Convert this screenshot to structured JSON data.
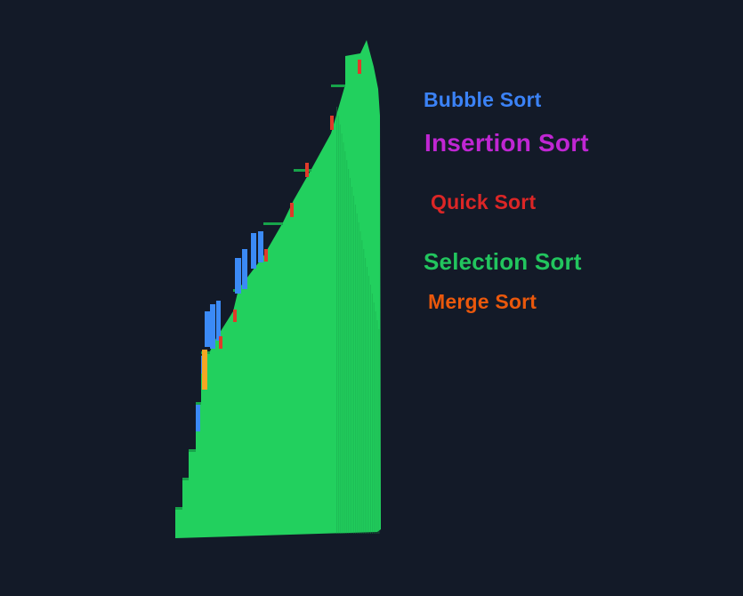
{
  "background": "#131a28",
  "legend": [
    {
      "key": "bubble",
      "label": "Bubble Sort",
      "color": "#3b82f6"
    },
    {
      "key": "insertion",
      "label": "Insertion Sort",
      "color": "#c026d3"
    },
    {
      "key": "quick",
      "label": "Quick Sort",
      "color": "#dc2626"
    },
    {
      "key": "selection",
      "label": "Selection Sort",
      "color": "#22c55e"
    },
    {
      "key": "merge",
      "label": "Merge Sort",
      "color": "#ea580c"
    }
  ],
  "bar_colors": {
    "main": "#22d05e",
    "dark": "#17a34a",
    "bubble": "#3b8af6",
    "quick": "#e03a2a",
    "merge": "#f5a623"
  }
}
